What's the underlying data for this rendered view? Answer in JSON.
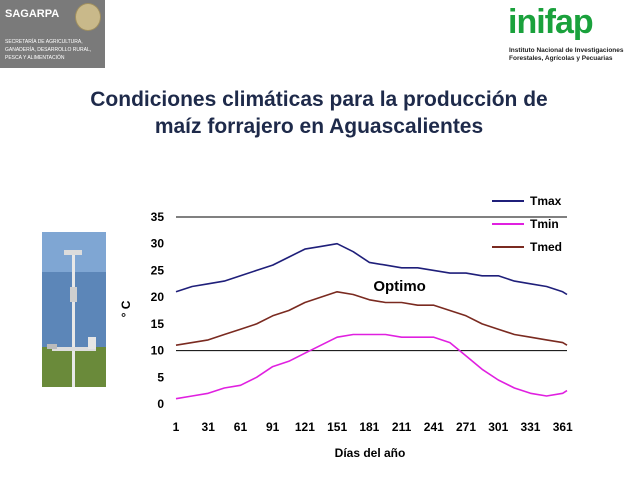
{
  "header": {
    "left_logo": {
      "name": "SAGARPA",
      "subtitle": "SECRETARÍA DE AGRICULTURA, GANADERÍA, DESARROLLO RURAL, PESCA Y ALIMENTACIÓN",
      "icon": "mexico-seal-icon",
      "background": "#7a7a7a"
    },
    "right_logo": {
      "name": "inifap",
      "subtitle": "Instituto Nacional de Investigaciones Forestales, Agrícolas y Pecuarias",
      "color": "#1aa13c"
    }
  },
  "title_line1": "Condiciones climáticas para la producción de",
  "title_line2": "maíz forrajero en Aguascalientes",
  "photo": {
    "icon": "weather-station-photo"
  },
  "chart_data": {
    "type": "line",
    "title": "",
    "xlabel": "Días del año",
    "ylabel": "° C",
    "xlim": [
      1,
      365
    ],
    "ylim": [
      0,
      35
    ],
    "xticks": [
      "1",
      "31",
      "61",
      "91",
      "121",
      "151",
      "181",
      "211",
      "241",
      "271",
      "301",
      "331",
      "361"
    ],
    "yticks": [
      "0",
      "5",
      "10",
      "15",
      "20",
      "25",
      "30",
      "35"
    ],
    "grid": false,
    "legend_position": "top-right",
    "reference_lines": [
      10,
      35
    ],
    "annotations": [
      {
        "text": "Optimo",
        "x": 181,
        "y": 21.5
      }
    ],
    "series": [
      {
        "name": "Tmax",
        "color": "#1f1f7a",
        "x": [
          1,
          16,
          31,
          46,
          61,
          76,
          91,
          106,
          121,
          136,
          151,
          166,
          181,
          196,
          211,
          226,
          241,
          256,
          271,
          286,
          301,
          316,
          331,
          346,
          361,
          365
        ],
        "values": [
          21,
          22,
          22.5,
          23,
          24,
          25,
          26,
          27.5,
          29,
          29.5,
          30,
          28.5,
          26.5,
          26,
          25.5,
          25.5,
          25,
          24.5,
          24.5,
          24,
          24,
          23,
          22.5,
          22,
          21,
          20.5
        ]
      },
      {
        "name": "Tmin",
        "color": "#e020e0",
        "x": [
          1,
          16,
          31,
          46,
          61,
          76,
          91,
          106,
          121,
          136,
          151,
          166,
          181,
          196,
          211,
          226,
          241,
          256,
          271,
          286,
          301,
          316,
          331,
          346,
          361,
          365
        ],
        "values": [
          1,
          1.5,
          2,
          3,
          3.5,
          5,
          7,
          8,
          9.5,
          11,
          12.5,
          13,
          13,
          13,
          12.5,
          12.5,
          12.5,
          11.5,
          9,
          6.5,
          4.5,
          3,
          2,
          1.5,
          2,
          2.5
        ]
      },
      {
        "name": "Tmed",
        "color": "#7a2a20",
        "x": [
          1,
          16,
          31,
          46,
          61,
          76,
          91,
          106,
          121,
          136,
          151,
          166,
          181,
          196,
          211,
          226,
          241,
          256,
          271,
          286,
          301,
          316,
          331,
          346,
          361,
          365
        ],
        "values": [
          11,
          11.5,
          12,
          13,
          14,
          15,
          16.5,
          17.5,
          19,
          20,
          21,
          20.5,
          19.5,
          19,
          19,
          18.5,
          18.5,
          17.5,
          16.5,
          15,
          14,
          13,
          12.5,
          12,
          11.5,
          11
        ]
      }
    ]
  }
}
